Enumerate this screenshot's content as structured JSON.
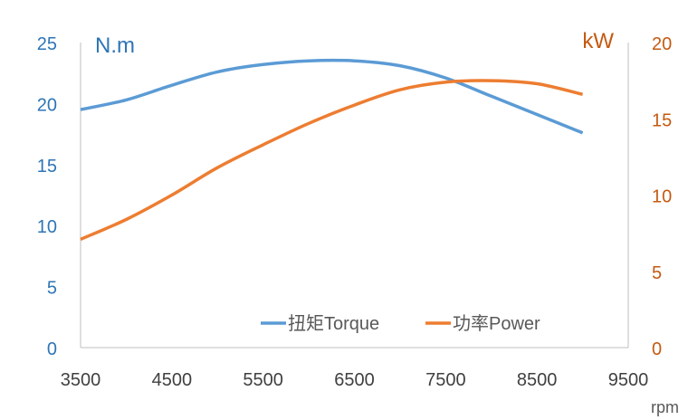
{
  "chart_data": {
    "type": "line",
    "x_axis": {
      "label": "rpm",
      "range": [
        3500,
        9500
      ],
      "ticks": [
        3500,
        4500,
        5500,
        6500,
        7500,
        8500,
        9500
      ],
      "tick_labels": [
        "3500",
        "4500",
        "5500",
        "6500",
        "7500",
        "8500",
        "9500"
      ]
    },
    "y_axis_left": {
      "label": "N.m",
      "range": [
        0,
        25
      ],
      "ticks": [
        0,
        5,
        10,
        15,
        20,
        25
      ],
      "tick_labels": [
        "0",
        "5",
        "10",
        "15",
        "20",
        "25"
      ],
      "color": "#2e75b6"
    },
    "y_axis_right": {
      "label": "kW",
      "range": [
        0,
        20
      ],
      "ticks": [
        0,
        5,
        10,
        15,
        20
      ],
      "tick_labels": [
        "0",
        "5",
        "10",
        "15",
        "20"
      ],
      "color": "#c55a11"
    },
    "series": [
      {
        "name": "扭矩Torque",
        "axis": "left",
        "color": "#5b9bd5",
        "x": [
          3500,
          4000,
          4500,
          5000,
          5500,
          6000,
          6500,
          7000,
          7500,
          8000,
          8500,
          9000
        ],
        "values": [
          19.5,
          20.3,
          21.5,
          22.6,
          23.2,
          23.5,
          23.5,
          23.1,
          22.1,
          20.6,
          19.1,
          17.6
        ]
      },
      {
        "name": "功率Power",
        "axis": "right",
        "color": "#ed7d31",
        "x": [
          3500,
          4000,
          4500,
          5000,
          5500,
          6000,
          6500,
          7000,
          7500,
          8000,
          8500,
          9000
        ],
        "values": [
          7.1,
          8.4,
          10.0,
          11.8,
          13.3,
          14.7,
          15.9,
          16.9,
          17.4,
          17.5,
          17.3,
          16.6
        ]
      }
    ],
    "legend": {
      "position": "bottom-right-inside"
    },
    "grid": false
  }
}
